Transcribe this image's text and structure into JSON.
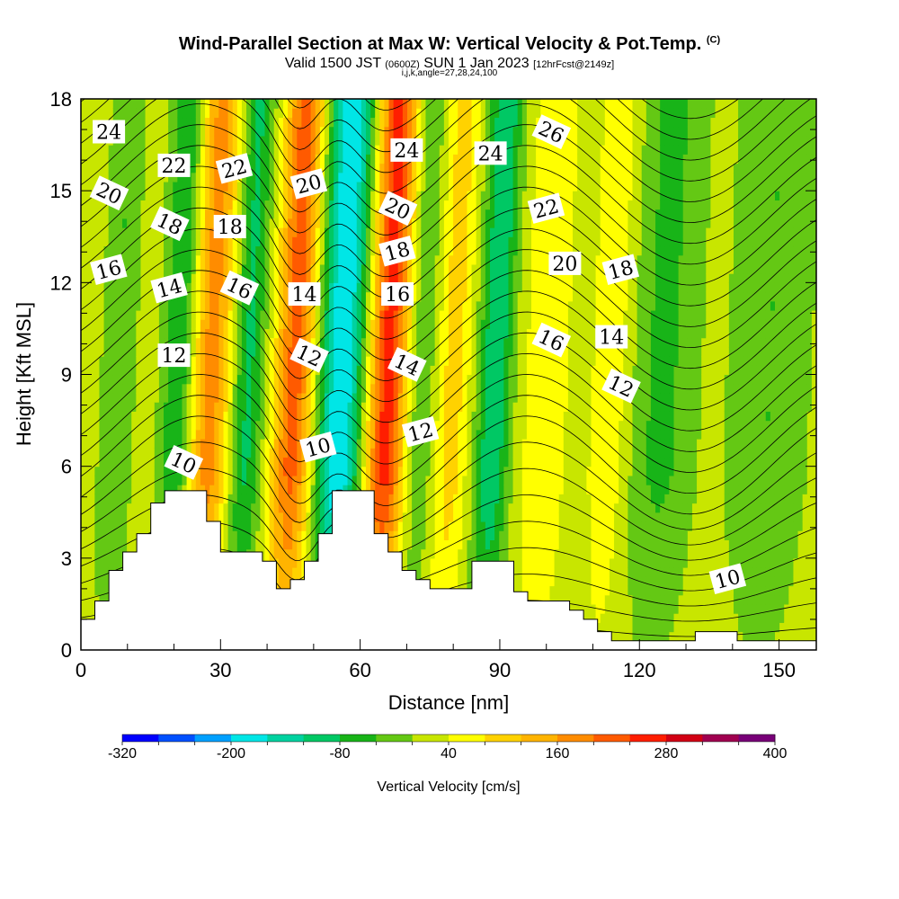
{
  "header": {
    "title": "Wind-Parallel Section at Max W: Vertical Velocity & Pot.Temp.",
    "title_tag": "(C)",
    "valid_prefix": "Valid 1500 JST",
    "valid_zulu": "(0600Z)",
    "valid_date": "SUN 1 Jan 2023",
    "forecast_tag": "[12hrFcst@2149z]",
    "section_params": "i,j,k,angle=27,28,24,100"
  },
  "chart_data": {
    "type": "heatmap",
    "xlabel": "Distance [nm]",
    "ylabel": "Height [Kft MSL]",
    "xlim": [
      0,
      158
    ],
    "ylim": [
      0,
      18
    ],
    "xticks": [
      0,
      30,
      60,
      90,
      120,
      150
    ],
    "yticks": [
      0,
      3,
      6,
      9,
      12,
      15,
      18
    ],
    "grid": false,
    "colorbar": {
      "label": "Vertical Velocity [cm/s]",
      "min": -320,
      "max": 400,
      "step": 40,
      "tick_values": [
        -320,
        -200,
        -80,
        40,
        160,
        280,
        400
      ],
      "tick_labels": [
        "-320",
        "-200",
        "-80",
        "40",
        "160",
        "280",
        "400"
      ],
      "colors": [
        "#0000ff",
        "#0050ff",
        "#00a0ff",
        "#00e6e6",
        "#00d2a0",
        "#00c864",
        "#18b418",
        "#64c814",
        "#c8e600",
        "#ffff00",
        "#ffd200",
        "#ffb400",
        "#ff8c00",
        "#ff5a00",
        "#ff1e00",
        "#d20014",
        "#a00050",
        "#780078"
      ]
    },
    "terrain": [
      [
        0,
        1.0
      ],
      [
        3,
        1.0
      ],
      [
        3,
        1.6
      ],
      [
        6,
        1.6
      ],
      [
        6,
        2.6
      ],
      [
        9,
        2.6
      ],
      [
        9,
        3.2
      ],
      [
        12,
        3.2
      ],
      [
        12,
        3.8
      ],
      [
        15,
        3.8
      ],
      [
        15,
        4.8
      ],
      [
        18,
        4.8
      ],
      [
        18,
        5.2
      ],
      [
        21,
        5.2
      ],
      [
        24,
        5.2
      ],
      [
        24,
        5.2
      ],
      [
        27,
        5.2
      ],
      [
        27,
        4.2
      ],
      [
        30,
        4.2
      ],
      [
        30,
        3.2
      ],
      [
        33,
        3.2
      ],
      [
        36,
        3.2
      ],
      [
        39,
        3.2
      ],
      [
        39,
        2.9
      ],
      [
        42,
        2.9
      ],
      [
        42,
        2.0
      ],
      [
        45,
        2.0
      ],
      [
        45,
        2.3
      ],
      [
        48,
        2.3
      ],
      [
        48,
        2.9
      ],
      [
        51,
        2.9
      ],
      [
        51,
        3.8
      ],
      [
        54,
        3.8
      ],
      [
        54,
        5.2
      ],
      [
        57,
        5.2
      ],
      [
        60,
        5.2
      ],
      [
        60,
        5.2
      ],
      [
        63,
        5.2
      ],
      [
        63,
        3.8
      ],
      [
        66,
        3.8
      ],
      [
        66,
        3.2
      ],
      [
        69,
        3.2
      ],
      [
        69,
        2.6
      ],
      [
        72,
        2.6
      ],
      [
        72,
        2.3
      ],
      [
        75,
        2.3
      ],
      [
        75,
        2.0
      ],
      [
        78,
        2.0
      ],
      [
        81,
        2.0
      ],
      [
        84,
        2.0
      ],
      [
        84,
        2.9
      ],
      [
        87,
        2.9
      ],
      [
        90,
        2.9
      ],
      [
        93,
        2.9
      ],
      [
        93,
        1.9
      ],
      [
        96,
        1.9
      ],
      [
        96,
        1.6
      ],
      [
        99,
        1.6
      ],
      [
        102,
        1.6
      ],
      [
        105,
        1.6
      ],
      [
        105,
        1.3
      ],
      [
        108,
        1.3
      ],
      [
        108,
        1.0
      ],
      [
        111,
        1.0
      ],
      [
        111,
        0.6
      ],
      [
        114,
        0.6
      ],
      [
        114,
        0.3
      ],
      [
        117,
        0.3
      ],
      [
        120,
        0.3
      ],
      [
        123,
        0.3
      ],
      [
        126,
        0.3
      ],
      [
        129,
        0.3
      ],
      [
        132,
        0.3
      ],
      [
        132,
        0.6
      ],
      [
        135,
        0.6
      ],
      [
        138,
        0.6
      ],
      [
        141,
        0.6
      ],
      [
        141,
        0.3
      ],
      [
        144,
        0.3
      ],
      [
        147,
        0.3
      ],
      [
        150,
        0.3
      ],
      [
        158,
        0.3
      ]
    ],
    "contour_labels": [
      {
        "text": "24",
        "x": 6,
        "y": 16.9
      },
      {
        "text": "20",
        "x": 6,
        "y": 14.9
      },
      {
        "text": "16",
        "x": 6,
        "y": 12.4
      },
      {
        "text": "22",
        "x": 20,
        "y": 15.8
      },
      {
        "text": "18",
        "x": 19,
        "y": 13.9
      },
      {
        "text": "14",
        "x": 19,
        "y": 11.8
      },
      {
        "text": "12",
        "x": 20,
        "y": 9.6
      },
      {
        "text": "10",
        "x": 22,
        "y": 6.1
      },
      {
        "text": "22",
        "x": 33,
        "y": 15.7
      },
      {
        "text": "18",
        "x": 32,
        "y": 13.8
      },
      {
        "text": "16",
        "x": 34,
        "y": 11.8
      },
      {
        "text": "20",
        "x": 49,
        "y": 15.2
      },
      {
        "text": "14",
        "x": 48,
        "y": 11.6
      },
      {
        "text": "12",
        "x": 49,
        "y": 9.6
      },
      {
        "text": "10",
        "x": 51,
        "y": 6.6
      },
      {
        "text": "24",
        "x": 70,
        "y": 16.3
      },
      {
        "text": "20",
        "x": 68,
        "y": 14.4
      },
      {
        "text": "18",
        "x": 68,
        "y": 13.0
      },
      {
        "text": "16",
        "x": 68,
        "y": 11.6
      },
      {
        "text": "14",
        "x": 70,
        "y": 9.3
      },
      {
        "text": "12",
        "x": 73,
        "y": 7.1
      },
      {
        "text": "24",
        "x": 88,
        "y": 16.2
      },
      {
        "text": "26",
        "x": 101,
        "y": 16.9
      },
      {
        "text": "22",
        "x": 100,
        "y": 14.4
      },
      {
        "text": "20",
        "x": 104,
        "y": 12.6
      },
      {
        "text": "16",
        "x": 101,
        "y": 10.1
      },
      {
        "text": "18",
        "x": 116,
        "y": 12.4
      },
      {
        "text": "14",
        "x": 114,
        "y": 10.2
      },
      {
        "text": "12",
        "x": 116,
        "y": 8.6
      },
      {
        "text": "10",
        "x": 139,
        "y": 2.3
      }
    ]
  }
}
